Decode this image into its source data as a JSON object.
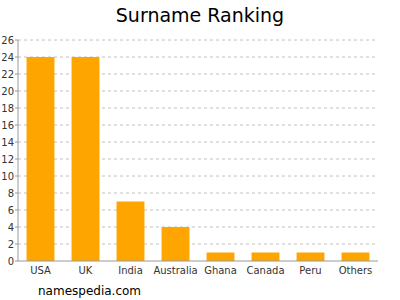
{
  "chart_data": {
    "type": "bar",
    "title": "Surname Ranking",
    "categories": [
      "USA",
      "UK",
      "India",
      "Australia",
      "Ghana",
      "Canada",
      "Peru",
      "Others"
    ],
    "values": [
      24,
      24,
      7,
      4,
      1,
      1,
      1,
      1
    ],
    "color": "#ffa500",
    "ylim": [
      0,
      26
    ],
    "yticks": [
      0,
      2,
      4,
      6,
      8,
      10,
      12,
      14,
      16,
      18,
      20,
      22,
      24,
      26
    ],
    "grid": true,
    "source": "namespedia.com"
  }
}
